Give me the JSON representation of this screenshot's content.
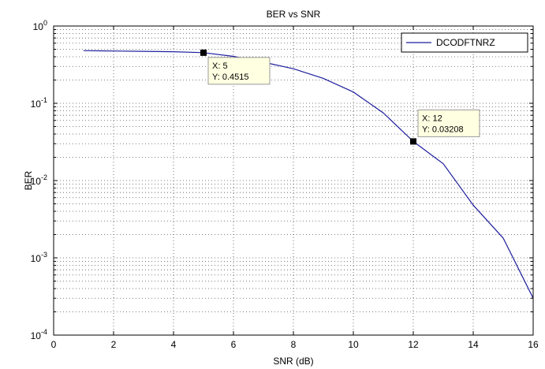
{
  "chart_data": {
    "type": "line",
    "title": "BER vs SNR",
    "xlabel": "SNR (dB)",
    "ylabel": "BER",
    "xlim": [
      0,
      16
    ],
    "ylim": [
      0.0001,
      1
    ],
    "yscale": "log",
    "grid": true,
    "legend_position": "top-right",
    "x_ticks": [
      "0",
      "2",
      "4",
      "6",
      "8",
      "10",
      "12",
      "14",
      "16"
    ],
    "y_ticks": [
      {
        "base": "10",
        "exp": "0"
      },
      {
        "base": "10",
        "exp": "-1"
      },
      {
        "base": "10",
        "exp": "-2"
      },
      {
        "base": "10",
        "exp": "-3"
      },
      {
        "base": "10",
        "exp": "-4"
      }
    ],
    "series": [
      {
        "name": "DCODFTNRZ",
        "color": "#1f1f9e",
        "x": [
          1,
          2,
          3,
          4,
          5,
          6,
          7,
          8,
          9,
          10,
          11,
          12,
          13,
          14,
          15,
          16
        ],
        "y": [
          0.48,
          0.475,
          0.47,
          0.465,
          0.4515,
          0.405,
          0.34,
          0.28,
          0.21,
          0.14,
          0.075,
          0.03208,
          0.0165,
          0.0048,
          0.0018,
          0.0003
        ]
      }
    ],
    "datatips": [
      {
        "x": 5,
        "y": 0.4515,
        "x_text": "X: 5",
        "y_text": "Y: 0.4515",
        "side": "below-right"
      },
      {
        "x": 12,
        "y": 0.03208,
        "x_text": "X: 12",
        "y_text": "Y: 0.03208",
        "side": "above-right"
      }
    ]
  }
}
